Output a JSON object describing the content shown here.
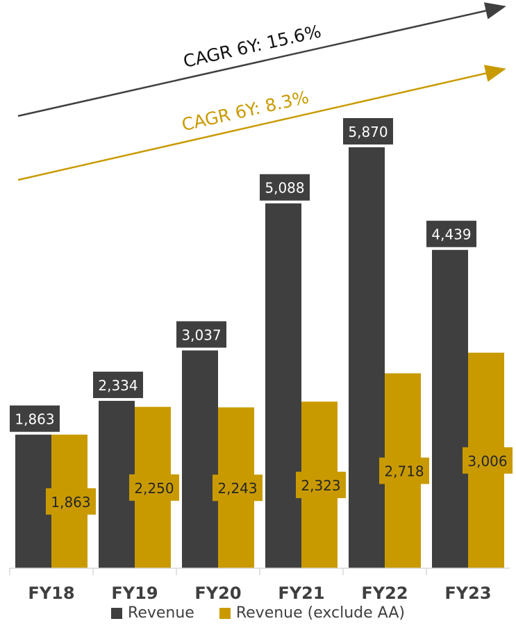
{
  "chart_data": {
    "type": "bar",
    "categories": [
      "FY18",
      "FY19",
      "FY20",
      "FY21",
      "FY22",
      "FY23"
    ],
    "series": [
      {
        "name": "Revenue",
        "values": [
          1863,
          2334,
          3037,
          5088,
          5870,
          4439
        ],
        "labels": [
          "1,863",
          "2,334",
          "3,037",
          "5,088",
          "5,870",
          "4,439"
        ],
        "color": "#3f3f3f"
      },
      {
        "name": "Revenue (exclude AA)",
        "values": [
          1863,
          2250,
          2243,
          2323,
          2718,
          3006
        ],
        "labels": [
          "1,863",
          "2,250",
          "2,243",
          "2,323",
          "2,718",
          "3,006"
        ],
        "color": "#c99a00"
      }
    ],
    "ylim": [
      0,
      6300
    ],
    "legend_position": "bottom",
    "annotations": [
      {
        "text": "CAGR 6Y: 15.6%",
        "color": "#111111"
      },
      {
        "text": "CAGR 6Y: 8.3%",
        "color": "#c99a00"
      }
    ]
  }
}
